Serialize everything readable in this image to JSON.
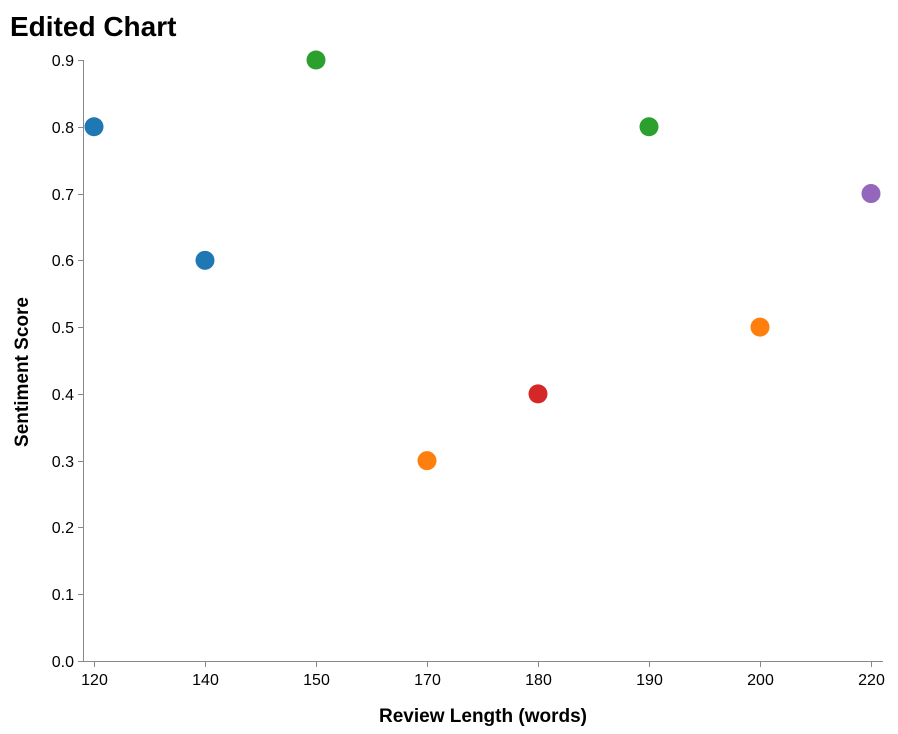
{
  "chart_data": {
    "type": "scatter",
    "title": "Edited Chart",
    "xlabel": "Review Length (words)",
    "ylabel": "Sentiment Score",
    "x_ticks": [
      "120",
      "140",
      "150",
      "170",
      "180",
      "190",
      "200",
      "220"
    ],
    "y_ticks": [
      "0.0",
      "0.1",
      "0.2",
      "0.3",
      "0.4",
      "0.5",
      "0.6",
      "0.7",
      "0.8",
      "0.9"
    ],
    "y_range": [
      0,
      0.9
    ],
    "x_scale": "ordinal",
    "grid": false,
    "legend": "none",
    "points": [
      {
        "x": "120",
        "y": 0.8,
        "color": "#1f77b4"
      },
      {
        "x": "140",
        "y": 0.6,
        "color": "#1f77b4"
      },
      {
        "x": "150",
        "y": 0.9,
        "color": "#2ca02c"
      },
      {
        "x": "170",
        "y": 0.3,
        "color": "#ff7f0e"
      },
      {
        "x": "180",
        "y": 0.4,
        "color": "#d62728"
      },
      {
        "x": "190",
        "y": 0.8,
        "color": "#2ca02c"
      },
      {
        "x": "200",
        "y": 0.5,
        "color": "#ff7f0e"
      },
      {
        "x": "220",
        "y": 0.7,
        "color": "#9467bd"
      }
    ]
  }
}
